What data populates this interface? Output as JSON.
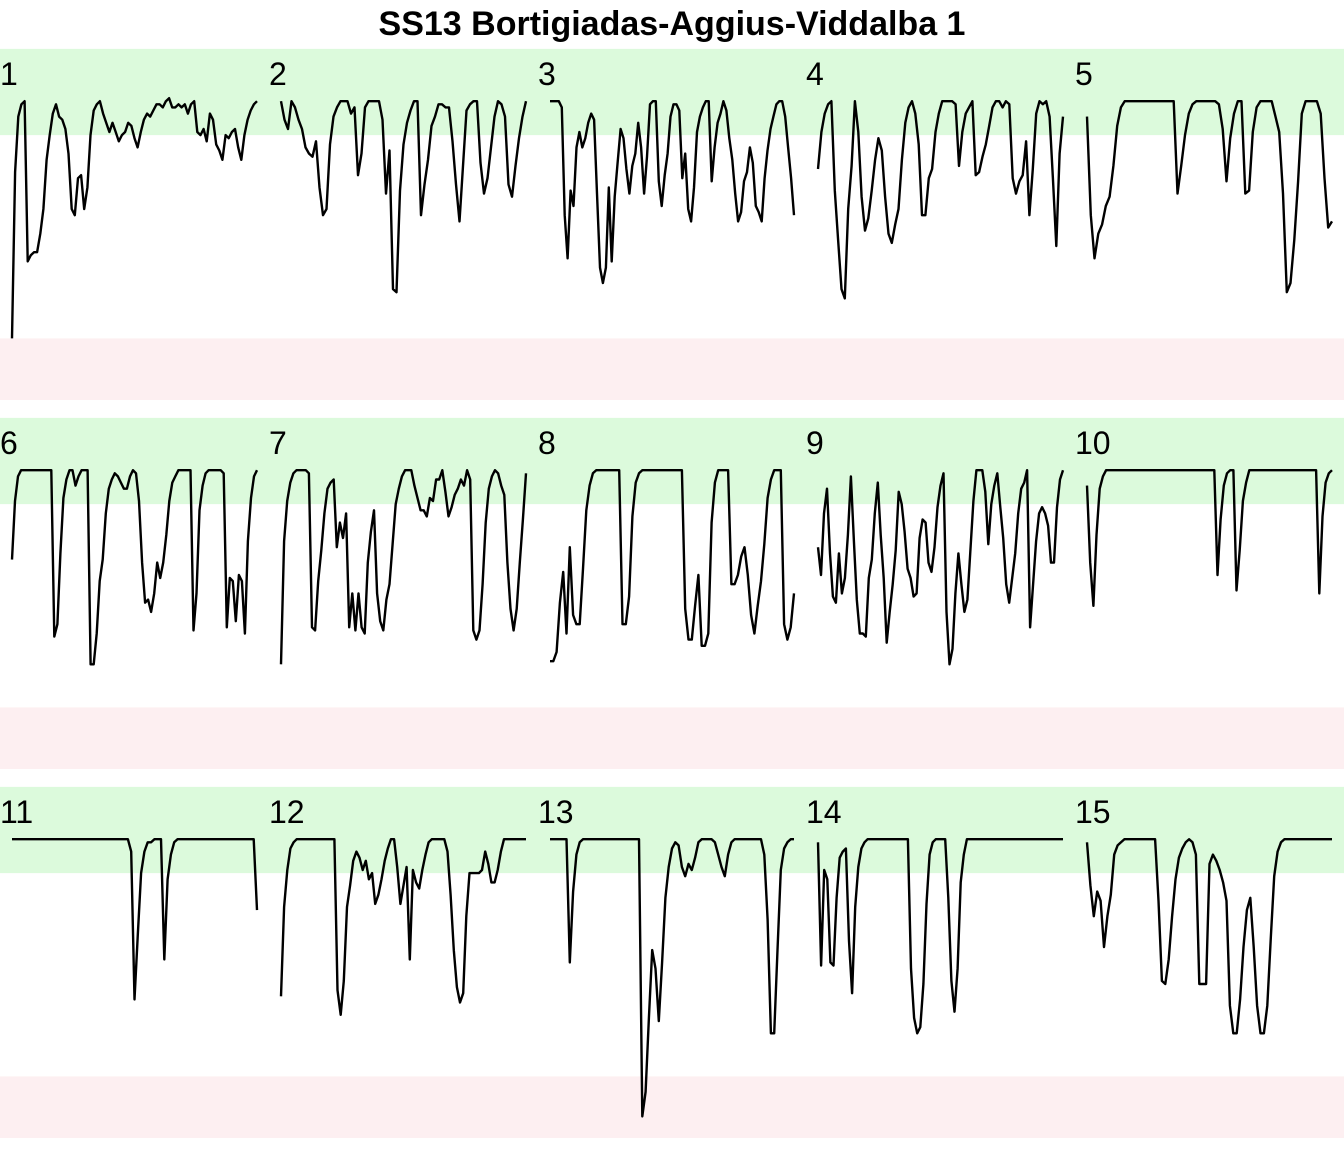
{
  "chart_data": {
    "type": "line",
    "title": "SS13 Bortigiadas-Aggius-Viddalba 1",
    "xlabel": "",
    "ylabel": "",
    "ylim": [
      0,
      1
    ],
    "bands": {
      "high": [
        0.86,
        1.0
      ],
      "low": [
        0.0,
        0.2
      ]
    },
    "colors": {
      "line": "#000000",
      "high_band": "#dcfadc",
      "low_band": "#fdeff1"
    },
    "panels": [
      {
        "label": "1",
        "values": [
          0.2,
          0.74,
          0.92,
          0.96,
          0.97,
          0.45,
          0.47,
          0.48,
          0.48,
          0.54,
          0.62,
          0.78,
          0.86,
          0.93,
          0.96,
          0.92,
          0.91,
          0.88,
          0.8,
          0.62,
          0.6,
          0.72,
          0.73,
          0.62,
          0.69,
          0.86,
          0.94,
          0.96,
          0.97,
          0.93,
          0.9,
          0.87,
          0.9,
          0.87,
          0.84,
          0.86,
          0.87,
          0.9,
          0.89,
          0.85,
          0.82,
          0.87,
          0.91,
          0.93,
          0.92,
          0.94,
          0.96,
          0.96,
          0.95,
          0.97,
          0.98,
          0.95,
          0.95,
          0.96,
          0.95,
          0.96,
          0.93,
          0.96,
          0.97,
          0.87,
          0.86,
          0.88,
          0.84,
          0.93,
          0.91,
          0.83,
          0.81,
          0.78,
          0.86,
          0.85,
          0.87,
          0.88,
          0.82,
          0.78,
          0.86,
          0.91,
          0.94,
          0.96,
          0.97
        ]
      },
      {
        "label": "2",
        "values": [
          0.97,
          0.91,
          0.88,
          0.97,
          0.95,
          0.91,
          0.88,
          0.82,
          0.8,
          0.79,
          0.84,
          0.69,
          0.6,
          0.62,
          0.83,
          0.92,
          0.95,
          0.97,
          0.97,
          0.97,
          0.93,
          0.95,
          0.73,
          0.8,
          0.95,
          0.97,
          0.97,
          0.97,
          0.97,
          0.91,
          0.67,
          0.81,
          0.36,
          0.35,
          0.68,
          0.83,
          0.9,
          0.94,
          0.97,
          0.97,
          0.6,
          0.7,
          0.78,
          0.89,
          0.92,
          0.96,
          0.96,
          0.95,
          0.95,
          0.84,
          0.7,
          0.58,
          0.76,
          0.94,
          0.96,
          0.97,
          0.97,
          0.77,
          0.67,
          0.72,
          0.82,
          0.92,
          0.97,
          0.96,
          0.92,
          0.7,
          0.66,
          0.76,
          0.85,
          0.92,
          0.97
        ]
      },
      {
        "label": "3",
        "values": [
          0.97,
          0.97,
          0.97,
          0.97,
          0.95,
          0.6,
          0.46,
          0.68,
          0.63,
          0.82,
          0.87,
          0.82,
          0.85,
          0.9,
          0.93,
          0.91,
          0.67,
          0.43,
          0.38,
          0.43,
          0.69,
          0.45,
          0.66,
          0.77,
          0.88,
          0.85,
          0.75,
          0.67,
          0.76,
          0.8,
          0.9,
          0.82,
          0.67,
          0.79,
          0.96,
          0.97,
          0.97,
          0.71,
          0.63,
          0.73,
          0.8,
          0.92,
          0.96,
          0.96,
          0.94,
          0.72,
          0.8,
          0.62,
          0.58,
          0.69,
          0.87,
          0.92,
          0.95,
          0.97,
          0.97,
          0.71,
          0.82,
          0.9,
          0.93,
          0.97,
          0.94,
          0.85,
          0.78,
          0.67,
          0.58,
          0.61,
          0.71,
          0.74,
          0.82,
          0.77,
          0.63,
          0.61,
          0.58,
          0.72,
          0.81,
          0.88,
          0.92,
          0.96,
          0.97,
          0.97,
          0.92,
          0.82,
          0.72,
          0.6
        ]
      },
      {
        "label": "4",
        "values": [
          0.75,
          0.87,
          0.93,
          0.96,
          0.97,
          0.68,
          0.52,
          0.36,
          0.33,
          0.62,
          0.76,
          0.97,
          0.87,
          0.66,
          0.55,
          0.59,
          0.68,
          0.78,
          0.85,
          0.81,
          0.66,
          0.54,
          0.51,
          0.57,
          0.62,
          0.78,
          0.9,
          0.95,
          0.97,
          0.93,
          0.83,
          0.6,
          0.6,
          0.72,
          0.75,
          0.87,
          0.93,
          0.97,
          0.97,
          0.97,
          0.97,
          0.96,
          0.76,
          0.87,
          0.93,
          0.95,
          0.97,
          0.73,
          0.74,
          0.79,
          0.83,
          0.89,
          0.95,
          0.97,
          0.97,
          0.95,
          0.97,
          0.96,
          0.72,
          0.67,
          0.71,
          0.73,
          0.84,
          0.6,
          0.75,
          0.93,
          0.97,
          0.96,
          0.97,
          0.92,
          0.72,
          0.5,
          0.8,
          0.92
        ]
      },
      {
        "label": "5",
        "values": [
          0.92,
          0.6,
          0.46,
          0.54,
          0.57,
          0.63,
          0.66,
          0.76,
          0.89,
          0.95,
          0.97,
          0.97,
          0.97,
          0.97,
          0.97,
          0.97,
          0.97,
          0.97,
          0.97,
          0.97,
          0.97,
          0.97,
          0.97,
          0.97,
          0.67,
          0.76,
          0.86,
          0.93,
          0.96,
          0.97,
          0.97,
          0.97,
          0.97,
          0.97,
          0.97,
          0.96,
          0.88,
          0.71,
          0.85,
          0.93,
          0.97,
          0.97,
          0.67,
          0.68,
          0.87,
          0.95,
          0.97,
          0.97,
          0.97,
          0.97,
          0.92,
          0.87,
          0.67,
          0.35,
          0.38,
          0.52,
          0.71,
          0.93,
          0.97,
          0.97,
          0.97,
          0.97,
          0.93,
          0.72,
          0.56,
          0.58
        ]
      },
      {
        "label": "6",
        "values": [
          0.68,
          0.87,
          0.95,
          0.97,
          0.97,
          0.97,
          0.97,
          0.97,
          0.97,
          0.97,
          0.97,
          0.97,
          0.97,
          0.97,
          0.43,
          0.47,
          0.7,
          0.88,
          0.94,
          0.97,
          0.97,
          0.92,
          0.95,
          0.97,
          0.97,
          0.97,
          0.34,
          0.34,
          0.44,
          0.61,
          0.68,
          0.83,
          0.91,
          0.94,
          0.96,
          0.95,
          0.93,
          0.91,
          0.91,
          0.95,
          0.97,
          0.96,
          0.87,
          0.67,
          0.54,
          0.55,
          0.51,
          0.57,
          0.67,
          0.62,
          0.67,
          0.76,
          0.87,
          0.93,
          0.95,
          0.97,
          0.97,
          0.97,
          0.97,
          0.97,
          0.45,
          0.57,
          0.84,
          0.92,
          0.96,
          0.97,
          0.97,
          0.97,
          0.97,
          0.97,
          0.96,
          0.46,
          0.62,
          0.61,
          0.48,
          0.63,
          0.61,
          0.44,
          0.74,
          0.88,
          0.95,
          0.97
        ]
      },
      {
        "label": "7",
        "values": [
          0.34,
          0.74,
          0.87,
          0.93,
          0.96,
          0.97,
          0.97,
          0.97,
          0.97,
          0.96,
          0.46,
          0.45,
          0.61,
          0.71,
          0.83,
          0.91,
          0.93,
          0.94,
          0.72,
          0.8,
          0.75,
          0.83,
          0.46,
          0.57,
          0.45,
          0.57,
          0.46,
          0.44,
          0.67,
          0.77,
          0.84,
          0.57,
          0.48,
          0.45,
          0.55,
          0.6,
          0.73,
          0.86,
          0.91,
          0.95,
          0.97,
          0.97,
          0.97,
          0.92,
          0.88,
          0.84,
          0.84,
          0.82,
          0.88,
          0.87,
          0.94,
          0.94,
          0.97,
          0.9,
          0.82,
          0.85,
          0.89,
          0.91,
          0.94,
          0.92,
          0.97,
          0.94,
          0.45,
          0.42,
          0.45,
          0.6,
          0.8,
          0.91,
          0.95,
          0.97,
          0.96,
          0.92,
          0.89,
          0.67,
          0.52,
          0.45,
          0.52,
          0.67,
          0.81,
          0.96
        ]
      },
      {
        "label": "8",
        "values": [
          0.35,
          0.35,
          0.38,
          0.54,
          0.64,
          0.44,
          0.72,
          0.5,
          0.47,
          0.47,
          0.65,
          0.84,
          0.92,
          0.96,
          0.97,
          0.97,
          0.97,
          0.97,
          0.97,
          0.97,
          0.97,
          0.97,
          0.47,
          0.47,
          0.56,
          0.82,
          0.93,
          0.96,
          0.97,
          0.97,
          0.97,
          0.97,
          0.97,
          0.97,
          0.97,
          0.97,
          0.97,
          0.97,
          0.97,
          0.97,
          0.97,
          0.52,
          0.42,
          0.42,
          0.53,
          0.63,
          0.4,
          0.4,
          0.44,
          0.8,
          0.93,
          0.97,
          0.97,
          0.97,
          0.97,
          0.6,
          0.6,
          0.63,
          0.69,
          0.72,
          0.63,
          0.5,
          0.44,
          0.53,
          0.61,
          0.73,
          0.88,
          0.94,
          0.97,
          0.97,
          0.97,
          0.47,
          0.42,
          0.46,
          0.57
        ]
      },
      {
        "label": "9",
        "values": [
          0.72,
          0.63,
          0.83,
          0.91,
          0.7,
          0.56,
          0.54,
          0.7,
          0.57,
          0.62,
          0.76,
          0.95,
          0.74,
          0.55,
          0.44,
          0.44,
          0.43,
          0.62,
          0.68,
          0.83,
          0.93,
          0.76,
          0.62,
          0.41,
          0.51,
          0.6,
          0.71,
          0.9,
          0.86,
          0.77,
          0.65,
          0.62,
          0.56,
          0.57,
          0.75,
          0.81,
          0.8,
          0.67,
          0.64,
          0.72,
          0.85,
          0.92,
          0.96,
          0.51,
          0.34,
          0.39,
          0.57,
          0.7,
          0.6,
          0.51,
          0.55,
          0.71,
          0.87,
          0.97,
          0.97,
          0.97,
          0.9,
          0.73,
          0.86,
          0.92,
          0.96,
          0.85,
          0.75,
          0.6,
          0.54,
          0.62,
          0.7,
          0.83,
          0.91,
          0.93,
          0.97,
          0.46,
          0.6,
          0.74,
          0.83,
          0.85,
          0.83,
          0.79,
          0.67,
          0.67,
          0.85,
          0.94,
          0.97
        ]
      },
      {
        "label": "10",
        "values": [
          0.92,
          0.67,
          0.53,
          0.76,
          0.91,
          0.95,
          0.97,
          0.97,
          0.97,
          0.97,
          0.97,
          0.97,
          0.97,
          0.97,
          0.97,
          0.97,
          0.97,
          0.97,
          0.97,
          0.97,
          0.97,
          0.97,
          0.97,
          0.97,
          0.97,
          0.97,
          0.97,
          0.97,
          0.97,
          0.97,
          0.97,
          0.97,
          0.97,
          0.97,
          0.97,
          0.97,
          0.97,
          0.97,
          0.97,
          0.97,
          0.97,
          0.63,
          0.81,
          0.92,
          0.96,
          0.97,
          0.97,
          0.58,
          0.71,
          0.87,
          0.93,
          0.97,
          0.97,
          0.97,
          0.97,
          0.97,
          0.97,
          0.97,
          0.97,
          0.97,
          0.97,
          0.97,
          0.97,
          0.97,
          0.97,
          0.97,
          0.97,
          0.97,
          0.97,
          0.97,
          0.97,
          0.97,
          0.97,
          0.57,
          0.82,
          0.93,
          0.96,
          0.97
        ]
      },
      {
        "label": "11",
        "values": [
          0.97,
          0.97,
          0.97,
          0.97,
          0.97,
          0.97,
          0.97,
          0.97,
          0.97,
          0.97,
          0.97,
          0.97,
          0.97,
          0.97,
          0.97,
          0.97,
          0.97,
          0.97,
          0.97,
          0.97,
          0.97,
          0.97,
          0.97,
          0.97,
          0.97,
          0.97,
          0.97,
          0.97,
          0.97,
          0.97,
          0.97,
          0.97,
          0.97,
          0.97,
          0.97,
          0.97,
          0.93,
          0.45,
          0.66,
          0.86,
          0.93,
          0.96,
          0.96,
          0.97,
          0.97,
          0.97,
          0.58,
          0.84,
          0.92,
          0.96,
          0.97,
          0.97,
          0.97,
          0.97,
          0.97,
          0.97,
          0.97,
          0.97,
          0.97,
          0.97,
          0.97,
          0.97,
          0.97,
          0.97,
          0.97,
          0.97,
          0.97,
          0.97,
          0.97,
          0.97,
          0.97,
          0.97,
          0.97,
          0.97,
          0.74
        ]
      },
      {
        "label": "12",
        "values": [
          0.46,
          0.75,
          0.87,
          0.94,
          0.96,
          0.97,
          0.97,
          0.97,
          0.97,
          0.97,
          0.97,
          0.97,
          0.97,
          0.97,
          0.97,
          0.97,
          0.97,
          0.97,
          0.48,
          0.4,
          0.51,
          0.75,
          0.82,
          0.9,
          0.93,
          0.91,
          0.87,
          0.9,
          0.84,
          0.86,
          0.76,
          0.79,
          0.84,
          0.9,
          0.94,
          0.97,
          0.97,
          0.88,
          0.76,
          0.82,
          0.88,
          0.58,
          0.87,
          0.83,
          0.81,
          0.87,
          0.92,
          0.96,
          0.97,
          0.97,
          0.97,
          0.97,
          0.97,
          0.93,
          0.79,
          0.61,
          0.49,
          0.44,
          0.47,
          0.72,
          0.86,
          0.86,
          0.86,
          0.86,
          0.87,
          0.93,
          0.89,
          0.83,
          0.83,
          0.87,
          0.93,
          0.97,
          0.97,
          0.97,
          0.97,
          0.97,
          0.97,
          0.97,
          0.97
        ]
      },
      {
        "label": "13",
        "values": [
          0.97,
          0.97,
          0.97,
          0.97,
          0.97,
          0.97,
          0.57,
          0.8,
          0.92,
          0.96,
          0.97,
          0.97,
          0.97,
          0.97,
          0.97,
          0.97,
          0.97,
          0.97,
          0.97,
          0.97,
          0.97,
          0.97,
          0.97,
          0.97,
          0.97,
          0.97,
          0.97,
          0.97,
          0.07,
          0.15,
          0.39,
          0.61,
          0.55,
          0.38,
          0.57,
          0.78,
          0.88,
          0.94,
          0.96,
          0.95,
          0.88,
          0.85,
          0.89,
          0.87,
          0.91,
          0.96,
          0.97,
          0.97,
          0.97,
          0.97,
          0.96,
          0.92,
          0.88,
          0.85,
          0.92,
          0.96,
          0.97,
          0.97,
          0.97,
          0.97,
          0.97,
          0.97,
          0.97,
          0.97,
          0.97,
          0.92,
          0.71,
          0.34,
          0.34,
          0.61,
          0.87,
          0.94,
          0.96,
          0.97,
          0.97
        ]
      },
      {
        "label": "14",
        "values": [
          0.96,
          0.56,
          0.87,
          0.84,
          0.57,
          0.56,
          0.78,
          0.91,
          0.93,
          0.94,
          0.64,
          0.47,
          0.75,
          0.88,
          0.94,
          0.96,
          0.97,
          0.97,
          0.97,
          0.97,
          0.97,
          0.97,
          0.97,
          0.97,
          0.97,
          0.97,
          0.97,
          0.97,
          0.97,
          0.97,
          0.55,
          0.39,
          0.34,
          0.36,
          0.5,
          0.76,
          0.92,
          0.96,
          0.97,
          0.97,
          0.97,
          0.97,
          0.78,
          0.51,
          0.41,
          0.55,
          0.83,
          0.92,
          0.97,
          0.97,
          0.97,
          0.97,
          0.97,
          0.97,
          0.97,
          0.97,
          0.97,
          0.97,
          0.97,
          0.97,
          0.97,
          0.97,
          0.97,
          0.97,
          0.97,
          0.97,
          0.97,
          0.97,
          0.97,
          0.97,
          0.97,
          0.97,
          0.97,
          0.97,
          0.97,
          0.97,
          0.97,
          0.97,
          0.97,
          0.97
        ]
      },
      {
        "label": "15",
        "values": [
          0.96,
          0.82,
          0.72,
          0.8,
          0.77,
          0.62,
          0.72,
          0.79,
          0.92,
          0.95,
          0.96,
          0.97,
          0.97,
          0.97,
          0.97,
          0.97,
          0.97,
          0.97,
          0.97,
          0.97,
          0.97,
          0.77,
          0.51,
          0.5,
          0.58,
          0.72,
          0.84,
          0.91,
          0.94,
          0.96,
          0.97,
          0.96,
          0.92,
          0.5,
          0.5,
          0.5,
          0.89,
          0.92,
          0.9,
          0.87,
          0.83,
          0.77,
          0.43,
          0.34,
          0.34,
          0.45,
          0.62,
          0.74,
          0.78,
          0.62,
          0.43,
          0.34,
          0.34,
          0.43,
          0.65,
          0.85,
          0.93,
          0.96,
          0.97,
          0.97,
          0.97,
          0.97,
          0.97,
          0.97,
          0.97,
          0.97,
          0.97,
          0.97,
          0.97,
          0.97,
          0.97,
          0.97,
          0.97
        ]
      }
    ]
  }
}
